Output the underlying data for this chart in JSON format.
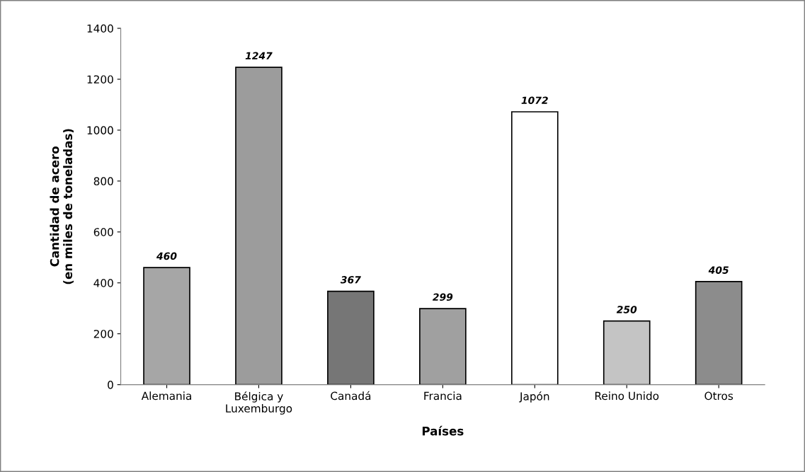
{
  "chart_data": {
    "type": "bar",
    "xlabel": "Países",
    "ylabel": "Cantidad de acero\n(en miles de toneladas)",
    "categories": [
      "Alemania",
      "Bélgica y\nLuxemburgo",
      "Canadá",
      "Francia",
      "Japón",
      "Reino Unido",
      "Otros"
    ],
    "values": [
      460,
      1247,
      367,
      299,
      1072,
      250,
      405
    ],
    "colors": [
      "#a6a6a6",
      "#9c9c9c",
      "#767676",
      "#a0a0a0",
      "#ffffff",
      "#c4c4c4",
      "#8c8c8c"
    ],
    "ylim": [
      0,
      1400
    ],
    "yticks": [
      0,
      200,
      400,
      600,
      800,
      1000,
      1200,
      1400
    ],
    "data_labels": true,
    "grid": false,
    "legend": false
  }
}
